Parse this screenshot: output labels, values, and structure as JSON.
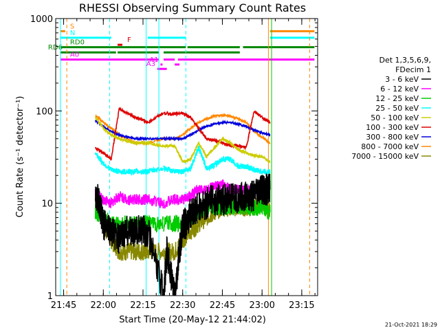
{
  "chart_data": {
    "type": "line",
    "title": "RHESSI Observing Summary Count Rates",
    "xlabel": "Start Time (20-May-12 21:44:02)",
    "ylabel": "Count Rate (s⁻¹ detector⁻¹)",
    "footer": "21-Oct-2021 18:29",
    "y_scale": "log",
    "ylim": [
      1,
      1000
    ],
    "xlim_minutes": [
      21.7,
      23.35
    ],
    "y_ticks": [
      {
        "value": 1,
        "label": "1"
      },
      {
        "value": 10,
        "label": "10"
      },
      {
        "value": 100,
        "label": "100"
      },
      {
        "value": 1000,
        "label": "1000"
      }
    ],
    "x_ticks": [
      {
        "value": 21.75,
        "label": "21:45"
      },
      {
        "value": 22.0,
        "label": "22:00"
      },
      {
        "value": 22.25,
        "label": "22:15"
      },
      {
        "value": 22.5,
        "label": "22:30"
      },
      {
        "value": 22.75,
        "label": "22:45"
      },
      {
        "value": 23.0,
        "label": "23:00"
      },
      {
        "value": 23.25,
        "label": "23:15"
      }
    ],
    "legend": {
      "placement": "right",
      "header": [
        "Det 1,3,5,6,9,",
        "FDecim 1"
      ],
      "entries": [
        {
          "label": "3 - 6 keV",
          "color": "#000000"
        },
        {
          "label": "6 - 12 keV",
          "color": "#ff00ff"
        },
        {
          "label": "12 - 25 keV",
          "color": "#00cc00"
        },
        {
          "label": "25 - 50 keV",
          "color": "#00ffff"
        },
        {
          "label": "50 - 100 keV",
          "color": "#cccc00"
        },
        {
          "label": "100 - 300 keV",
          "color": "#dd0000"
        },
        {
          "label": "300 - 800 keV",
          "color": "#0000dd"
        },
        {
          "label": "800 - 7000 keV",
          "color": "#ff8800"
        },
        {
          "label": "7000 - 15000 keV",
          "color": "#888800"
        }
      ]
    },
    "flag_bars": [
      {
        "label": "S",
        "color": "#ff8800",
        "y": 730,
        "segments": [
          [
            21.73,
            21.76
          ],
          [
            23.05,
            23.33
          ]
        ]
      },
      {
        "label": "N",
        "color": "#00ffff",
        "y": 620,
        "segments": [
          [
            21.73,
            22.05
          ],
          [
            22.28,
            22.52
          ],
          [
            23.05,
            23.33
          ]
        ]
      },
      {
        "label": "F",
        "color": "#dd0000",
        "y": 520,
        "segments": [
          [
            22.09,
            22.12
          ]
        ]
      },
      {
        "label": "RD0",
        "color": "#008800",
        "y": 490,
        "segments": [
          [
            21.73,
            22.52
          ],
          [
            22.53,
            22.86
          ],
          [
            22.88,
            23.33
          ]
        ]
      },
      {
        "label": "RD6",
        "color": "#008800",
        "y": 430,
        "segments": [
          [
            21.73,
            22.08
          ],
          [
            22.09,
            22.35
          ],
          [
            22.38,
            22.86
          ]
        ]
      },
      {
        "label": "A0",
        "color": "#ff00ff",
        "y": 360,
        "segments": [
          [
            21.73,
            22.35
          ],
          [
            22.38,
            22.45
          ],
          [
            22.47,
            23.33
          ]
        ]
      },
      {
        "label": "A1",
        "color": "#ff00ff",
        "y": 318,
        "segments": [
          [
            22.36,
            22.36
          ],
          [
            22.45,
            22.48
          ]
        ]
      },
      {
        "label": "A3",
        "color": "#ff00ff",
        "y": 285,
        "segments": [
          [
            22.34,
            22.4
          ]
        ]
      }
    ],
    "vertical_markers": [
      {
        "x": 21.73,
        "color": "#00ffff",
        "style": "solid"
      },
      {
        "x": 21.77,
        "color": "#ff8800",
        "style": "dashed"
      },
      {
        "x": 22.04,
        "color": "#00ffff",
        "style": "dashed"
      },
      {
        "x": 22.27,
        "color": "#00ffff",
        "style": "solid"
      },
      {
        "x": 22.35,
        "color": "#00ffff",
        "style": "solid"
      },
      {
        "x": 22.52,
        "color": "#00ffff",
        "style": "dashed"
      },
      {
        "x": 23.04,
        "color": "#ff8800",
        "style": "solid"
      },
      {
        "x": 23.06,
        "color": "#00cc00",
        "style": "solid"
      },
      {
        "x": 23.3,
        "color": "#ff8800",
        "style": "dashed"
      }
    ],
    "series": [
      {
        "name": "3 - 6 keV",
        "color": "#000000",
        "jitter": 0.35,
        "x": [
          21.95,
          21.98,
          22.0,
          22.05,
          22.1,
          22.15,
          22.2,
          22.25,
          22.28,
          22.38,
          22.4,
          22.45,
          22.48,
          22.5,
          22.52,
          22.55,
          22.6,
          22.65,
          22.7,
          22.75,
          22.8,
          22.85,
          22.9,
          22.95,
          23.0,
          23.03,
          23.05
        ],
        "y": [
          13,
          9,
          6,
          5,
          4,
          5,
          5,
          5,
          5,
          1,
          3,
          1,
          3,
          6,
          6,
          8,
          9,
          10,
          11,
          11,
          11,
          11,
          12,
          12,
          14,
          14,
          14
        ],
        "gaps_after": [
          8
        ]
      },
      {
        "name": "6 - 12 keV",
        "color": "#ff00ff",
        "jitter": 0.12,
        "x": [
          21.95,
          22.0,
          22.05,
          22.1,
          22.15,
          22.2,
          22.25,
          22.28,
          22.38,
          22.45,
          22.5,
          22.55,
          22.6,
          22.65,
          22.7,
          22.75,
          22.8,
          22.85,
          22.9,
          22.95,
          23.0,
          23.05
        ],
        "y": [
          13,
          11,
          10,
          12,
          11,
          11,
          11,
          11,
          10,
          11,
          11,
          12,
          14,
          14,
          15,
          16,
          14,
          14,
          14,
          14,
          15,
          14
        ],
        "gaps_after": [
          7
        ]
      },
      {
        "name": "12 - 25 keV",
        "color": "#00cc00",
        "jitter": 0.18,
        "x": [
          21.95,
          22.0,
          22.05,
          22.1,
          22.15,
          22.2,
          22.25,
          22.28,
          22.38,
          22.45,
          22.5,
          22.55,
          22.6,
          22.65,
          22.7,
          22.75,
          22.8,
          22.85,
          22.9,
          22.95,
          23.0,
          23.05
        ],
        "y": [
          8,
          7,
          6,
          6,
          6,
          6,
          6,
          6,
          6,
          6,
          6,
          7,
          8,
          9,
          9,
          9,
          9,
          9,
          9,
          9,
          9,
          8
        ],
        "gaps_after": [
          7
        ]
      },
      {
        "name": "25 - 50 keV",
        "color": "#00ffff",
        "jitter": 0.06,
        "x": [
          21.95,
          22.0,
          22.05,
          22.1,
          22.15,
          22.2,
          22.25,
          22.28,
          22.38,
          22.45,
          22.5,
          22.55,
          22.6,
          22.65,
          22.7,
          22.75,
          22.8,
          22.85,
          22.9,
          22.95,
          23.0,
          23.05
        ],
        "y": [
          35,
          27,
          23,
          22,
          22,
          22,
          22,
          22,
          24,
          22,
          22,
          24,
          40,
          24,
          26,
          30,
          30,
          25,
          25,
          23,
          22,
          22
        ],
        "gaps_after": [
          7
        ]
      },
      {
        "name": "50 - 100 keV",
        "color": "#cccc00",
        "jitter": 0.03,
        "x": [
          21.95,
          22.0,
          22.05,
          22.1,
          22.15,
          22.2,
          22.25,
          22.28,
          22.38,
          22.45,
          22.5,
          22.55,
          22.6,
          22.65,
          22.7,
          22.75,
          22.8,
          22.85,
          22.9,
          22.95,
          23.0,
          23.05
        ],
        "y": [
          85,
          65,
          55,
          50,
          47,
          45,
          45,
          45,
          42,
          42,
          28,
          30,
          45,
          32,
          40,
          50,
          45,
          38,
          35,
          33,
          32,
          28
        ],
        "gaps_after": [
          7
        ]
      },
      {
        "name": "100 - 300 keV",
        "color": "#dd0000",
        "jitter": 0.03,
        "x": [
          21.95,
          22.0,
          22.05,
          22.1,
          22.15,
          22.2,
          22.25,
          22.28,
          22.38,
          22.45,
          22.5,
          22.55,
          22.6,
          22.65,
          22.7,
          22.75,
          22.8,
          22.85,
          22.9,
          22.95,
          23.0,
          23.05
        ],
        "y": [
          40,
          35,
          30,
          105,
          95,
          85,
          80,
          75,
          95,
          92,
          95,
          85,
          65,
          50,
          48,
          45,
          42,
          42,
          40,
          100,
          85,
          75
        ],
        "gaps_after": [
          7
        ]
      },
      {
        "name": "300 - 800 keV",
        "color": "#0000dd",
        "jitter": 0.02,
        "x": [
          21.95,
          22.0,
          22.05,
          22.1,
          22.15,
          22.2,
          22.25,
          22.28,
          22.38,
          22.45,
          22.5,
          22.55,
          22.6,
          22.65,
          22.7,
          22.75,
          22.8,
          22.85,
          22.9,
          22.95,
          23.0,
          23.05
        ],
        "y": [
          78,
          68,
          60,
          55,
          52,
          50,
          50,
          50,
          50,
          50,
          50,
          55,
          62,
          68,
          72,
          75,
          75,
          72,
          68,
          62,
          58,
          55
        ],
        "gaps_after": [
          7
        ]
      },
      {
        "name": "800 - 7000 keV",
        "color": "#ff8800",
        "jitter": 0.02,
        "x": [
          21.95,
          22.0,
          22.05,
          22.1,
          22.15,
          22.2,
          22.25,
          22.28,
          22.38,
          22.45,
          22.5,
          22.55,
          22.6,
          22.65,
          22.7,
          22.75,
          22.8,
          22.85,
          22.9,
          22.95,
          23.0,
          23.05
        ],
        "y": [
          90,
          75,
          65,
          55,
          50,
          45,
          45,
          45,
          50,
          50,
          55,
          65,
          75,
          82,
          88,
          90,
          88,
          82,
          75,
          60,
          52,
          45
        ],
        "gaps_after": [
          7
        ]
      },
      {
        "name": "7000 - 15000 keV",
        "color": "#888800",
        "jitter": 0.2,
        "x": [
          21.95,
          22.0,
          22.05,
          22.1,
          22.15,
          22.2,
          22.25,
          22.28,
          22.38,
          22.45,
          22.5,
          22.55,
          22.6,
          22.65,
          22.7,
          22.75,
          22.8,
          22.85,
          22.9,
          22.95,
          23.0,
          23.05
        ],
        "y": [
          12,
          6,
          4,
          3,
          3,
          3,
          3,
          3,
          3,
          3,
          4,
          5,
          6,
          7,
          8,
          9,
          9,
          9,
          9,
          9,
          10,
          8
        ],
        "gaps_after": [
          7
        ]
      }
    ]
  }
}
